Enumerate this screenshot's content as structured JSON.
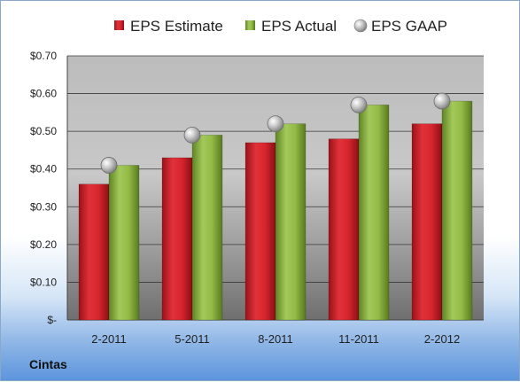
{
  "chart_data": {
    "type": "bar",
    "company": "Cintas",
    "categories": [
      "2-2011",
      "5-2011",
      "8-2011",
      "11-2011",
      "2-2012"
    ],
    "series": [
      {
        "name": "EPS Estimate",
        "values": [
          0.36,
          0.43,
          0.47,
          0.48,
          0.52
        ],
        "color": "#cc1f27",
        "kind": "bar"
      },
      {
        "name": "EPS Actual",
        "values": [
          0.41,
          0.49,
          0.52,
          0.57,
          0.58
        ],
        "color": "#8bb33c",
        "kind": "bar"
      },
      {
        "name": "EPS GAAP",
        "values": [
          0.41,
          0.49,
          0.52,
          0.57,
          0.58
        ],
        "color": "#b8b8b8",
        "kind": "marker"
      }
    ],
    "yticks": [
      "$-",
      "$0.10",
      "$0.20",
      "$0.30",
      "$0.40",
      "$0.50",
      "$0.60",
      "$0.70"
    ],
    "ylim": [
      0,
      0.7
    ],
    "grid": true,
    "legend_position": "top"
  }
}
